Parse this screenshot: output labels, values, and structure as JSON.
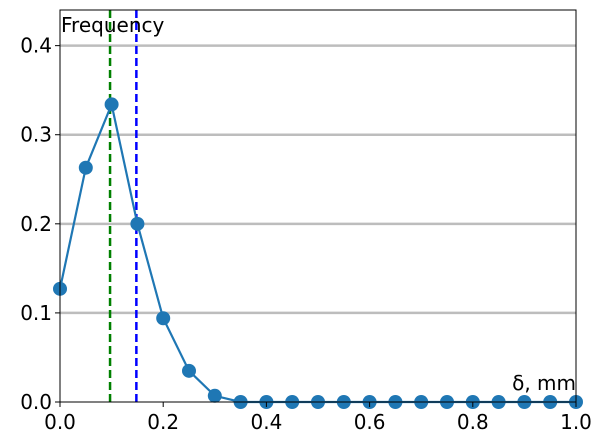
{
  "chart_data": {
    "type": "line",
    "ylabel": "Frequency",
    "xlabel": "δ, mm",
    "xlim": [
      0.0,
      1.0
    ],
    "ylim": [
      0.0,
      0.44
    ],
    "xticks": [
      0.0,
      0.2,
      0.4,
      0.6,
      0.8,
      1.0
    ],
    "xtick_labels": [
      "0.0",
      "0.2",
      "0.4",
      "0.6",
      "0.8",
      "1.0"
    ],
    "yticks": [
      0.0,
      0.1,
      0.2,
      0.3,
      0.4
    ],
    "ytick_labels": [
      "0.0",
      "0.1",
      "0.2",
      "0.3",
      "0.4"
    ],
    "grid": "horizontal",
    "series": [
      {
        "color": "#1f77b4",
        "marker": "circle",
        "x": [
          0.0,
          0.05,
          0.1,
          0.15,
          0.2,
          0.25,
          0.3,
          0.35,
          0.4,
          0.45,
          0.5,
          0.55,
          0.6,
          0.65,
          0.7,
          0.75,
          0.8,
          0.85,
          0.9,
          0.95,
          1.0
        ],
        "y": [
          0.127,
          0.263,
          0.334,
          0.2,
          0.094,
          0.035,
          0.007,
          0.0,
          0.0,
          0.0,
          0.0,
          0.0,
          0.0,
          0.0,
          0.0,
          0.0,
          0.0,
          0.0,
          0.0,
          0.0,
          0.0
        ]
      }
    ],
    "vlines": [
      {
        "x": 0.097,
        "color": "#008000",
        "style": "dashed"
      },
      {
        "x": 0.148,
        "color": "#0000ff",
        "style": "dashed"
      }
    ]
  }
}
